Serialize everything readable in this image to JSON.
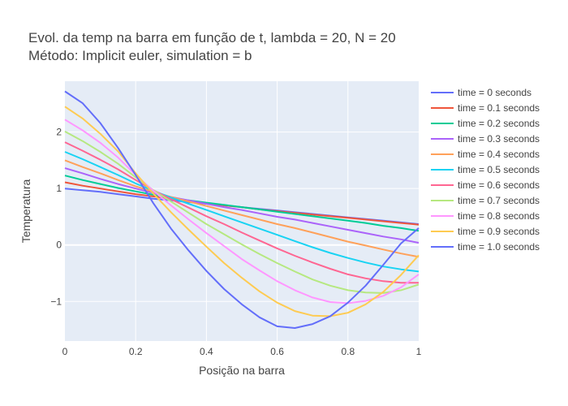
{
  "chart_data": {
    "type": "line",
    "title_line1": "Evol. da temp na barra em função de t, lambda = 20, N = 20",
    "title_line2": "Método: Implicit euler, simulation = b",
    "xlabel": "Posição na barra",
    "ylabel": "Temperatura",
    "xlim": [
      0,
      1
    ],
    "ylim": [
      -1.7,
      2.9
    ],
    "xticks": [
      0,
      0.2,
      0.4,
      0.6,
      0.8,
      1
    ],
    "xtick_labels": [
      "0",
      "0.2",
      "0.4",
      "0.6",
      "0.8",
      "1"
    ],
    "yticks": [
      -1,
      0,
      1,
      2
    ],
    "ytick_labels": [
      "−1",
      "0",
      "1",
      "2"
    ],
    "grid": true,
    "legend_position": "right",
    "x": [
      0,
      0.05,
      0.1,
      0.15,
      0.2,
      0.25,
      0.3,
      0.35,
      0.4,
      0.45,
      0.5,
      0.55,
      0.6,
      0.65,
      0.7,
      0.75,
      0.8,
      0.85,
      0.9,
      0.95,
      1
    ],
    "series": [
      {
        "name": "time = 0 seconds",
        "color": "#636efa",
        "values": [
          1.0,
          0.97,
          0.94,
          0.9,
          0.86,
          0.82,
          0.79,
          0.76,
          0.73,
          0.7,
          0.67,
          0.64,
          0.61,
          0.58,
          0.55,
          0.52,
          0.49,
          0.46,
          0.43,
          0.4,
          0.37
        ]
      },
      {
        "name": "time = 0.1 seconds",
        "color": "#ef553b",
        "values": [
          1.11,
          1.05,
          1.0,
          0.95,
          0.9,
          0.86,
          0.82,
          0.78,
          0.74,
          0.7,
          0.67,
          0.63,
          0.6,
          0.57,
          0.54,
          0.51,
          0.48,
          0.45,
          0.42,
          0.39,
          0.36
        ]
      },
      {
        "name": "time = 0.2 seconds",
        "color": "#00cc96",
        "values": [
          1.23,
          1.15,
          1.08,
          1.01,
          0.95,
          0.89,
          0.84,
          0.79,
          0.75,
          0.71,
          0.67,
          0.63,
          0.59,
          0.55,
          0.51,
          0.47,
          0.43,
          0.39,
          0.34,
          0.3,
          0.25
        ]
      },
      {
        "name": "time = 0.3 seconds",
        "color": "#ab63fa",
        "values": [
          1.36,
          1.27,
          1.17,
          1.08,
          1.0,
          0.92,
          0.85,
          0.79,
          0.73,
          0.67,
          0.62,
          0.56,
          0.5,
          0.45,
          0.39,
          0.33,
          0.27,
          0.21,
          0.15,
          0.1,
          0.04
        ]
      },
      {
        "name": "time = 0.4 seconds",
        "color": "#ffa15a",
        "values": [
          1.5,
          1.38,
          1.27,
          1.15,
          1.04,
          0.94,
          0.85,
          0.77,
          0.69,
          0.61,
          0.53,
          0.45,
          0.37,
          0.3,
          0.22,
          0.14,
          0.06,
          -0.01,
          -0.08,
          -0.15,
          -0.21
        ]
      },
      {
        "name": "time = 0.5 seconds",
        "color": "#19d3f3",
        "values": [
          1.65,
          1.52,
          1.38,
          1.24,
          1.09,
          0.96,
          0.84,
          0.73,
          0.62,
          0.51,
          0.4,
          0.29,
          0.18,
          0.07,
          -0.04,
          -0.14,
          -0.23,
          -0.31,
          -0.38,
          -0.43,
          -0.47
        ]
      },
      {
        "name": "time = 0.6 seconds",
        "color": "#ff6692",
        "values": [
          1.82,
          1.67,
          1.51,
          1.34,
          1.15,
          0.97,
          0.81,
          0.66,
          0.51,
          0.37,
          0.22,
          0.08,
          -0.06,
          -0.19,
          -0.31,
          -0.42,
          -0.52,
          -0.59,
          -0.64,
          -0.67,
          -0.67
        ]
      },
      {
        "name": "time = 0.7 seconds",
        "color": "#b6e880",
        "values": [
          2.01,
          1.84,
          1.65,
          1.44,
          1.2,
          0.97,
          0.77,
          0.57,
          0.37,
          0.19,
          0.01,
          -0.16,
          -0.32,
          -0.47,
          -0.61,
          -0.72,
          -0.8,
          -0.84,
          -0.85,
          -0.8,
          -0.7
        ]
      },
      {
        "name": "time = 0.8 seconds",
        "color": "#ff97ff",
        "values": [
          2.22,
          2.03,
          1.81,
          1.55,
          1.24,
          0.96,
          0.7,
          0.45,
          0.21,
          -0.02,
          -0.25,
          -0.45,
          -0.64,
          -0.8,
          -0.93,
          -1.01,
          -1.03,
          -0.99,
          -0.9,
          -0.75,
          -0.52
        ]
      },
      {
        "name": "time = 0.9 seconds",
        "color": "#fecb52",
        "values": [
          2.45,
          2.24,
          1.97,
          1.66,
          1.27,
          0.91,
          0.58,
          0.27,
          -0.03,
          -0.32,
          -0.58,
          -0.82,
          -1.02,
          -1.17,
          -1.25,
          -1.26,
          -1.2,
          -1.05,
          -0.83,
          -0.53,
          -0.18
        ]
      },
      {
        "name": "time = 1.0 seconds",
        "color": "#636efa",
        "values": [
          2.72,
          2.51,
          2.16,
          1.72,
          1.24,
          0.74,
          0.29,
          -0.1,
          -0.46,
          -0.78,
          -1.05,
          -1.28,
          -1.44,
          -1.47,
          -1.4,
          -1.26,
          -1.02,
          -0.72,
          -0.35,
          0.03,
          0.3
        ]
      }
    ]
  }
}
